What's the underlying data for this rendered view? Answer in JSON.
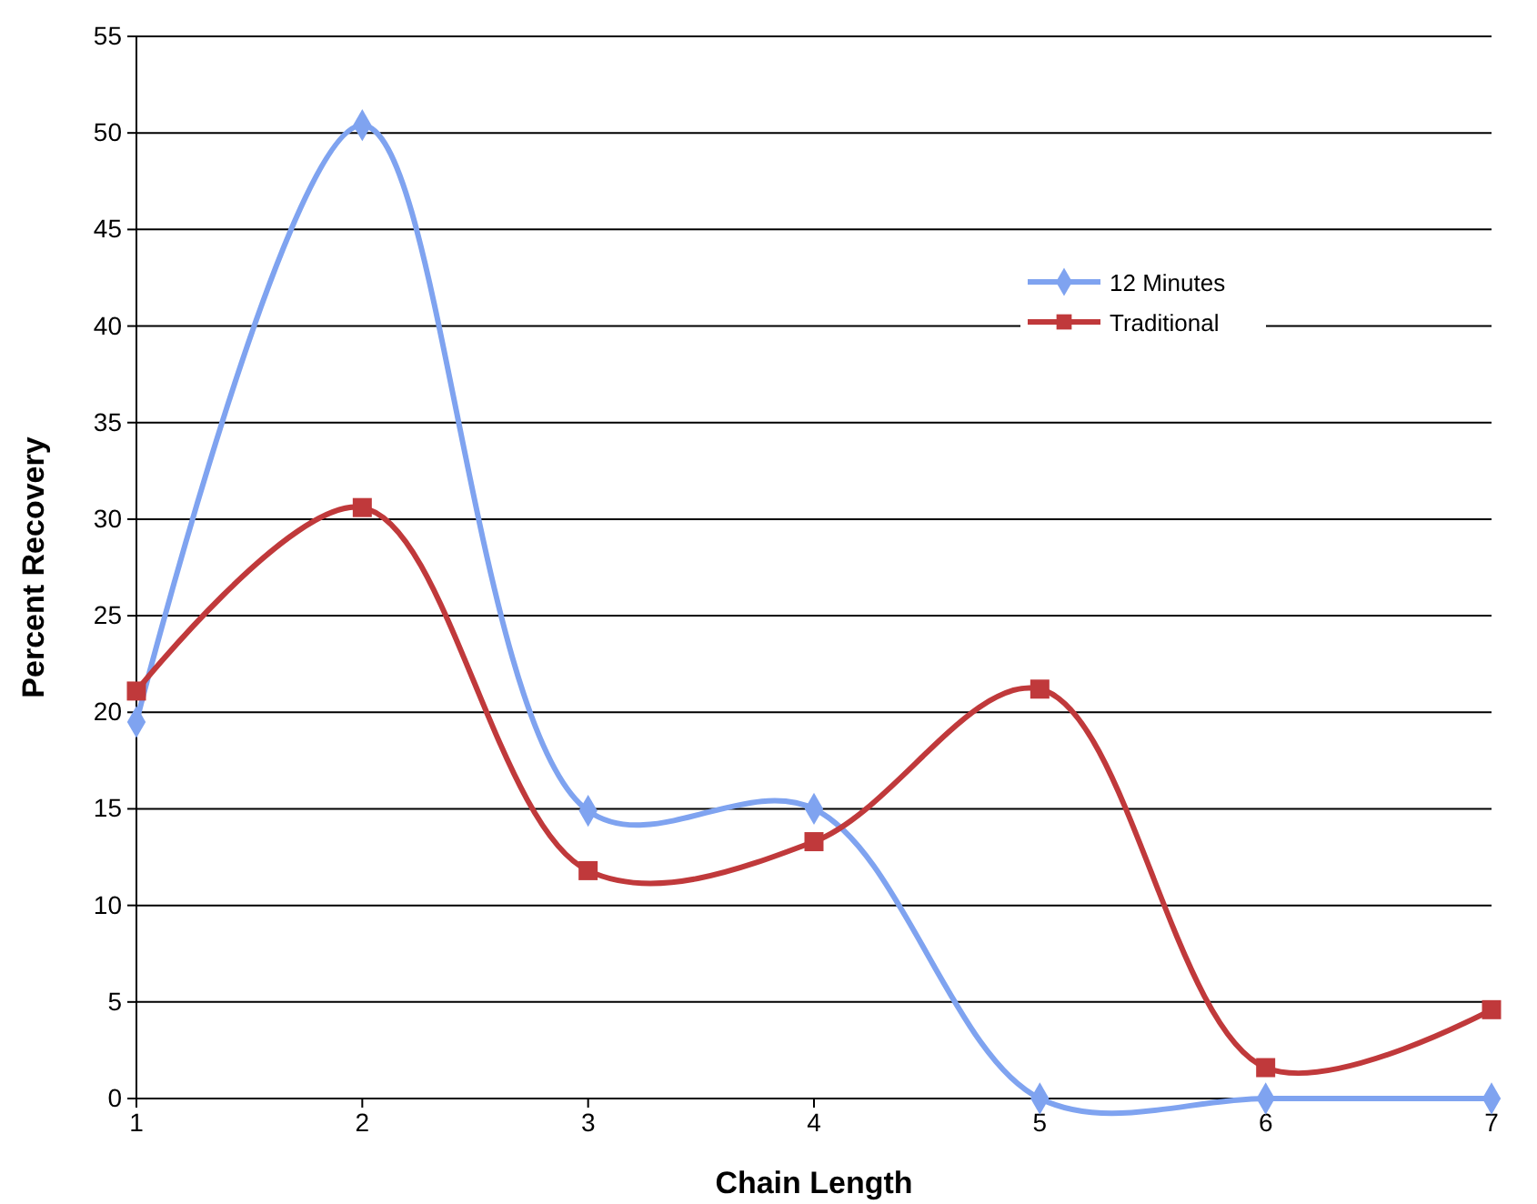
{
  "chart_data": {
    "type": "line",
    "xlabel": "Chain Length",
    "ylabel": "Percent Recovery",
    "x": [
      1,
      2,
      3,
      4,
      5,
      6,
      7
    ],
    "xlim": [
      1,
      7
    ],
    "xticks": [
      1,
      2,
      3,
      4,
      5,
      6,
      7
    ],
    "ylim": [
      0,
      55
    ],
    "yticks": [
      0,
      5,
      10,
      15,
      20,
      25,
      30,
      35,
      40,
      45,
      50,
      55
    ],
    "grid": "y",
    "legend": "top right",
    "series": [
      {
        "name": "12 Minutes",
        "color": "#7fa3f0",
        "marker": "diamond",
        "values": [
          19.5,
          50.4,
          14.9,
          15.0,
          0,
          0,
          0
        ]
      },
      {
        "name": "Traditional",
        "color": "#c0393b",
        "marker": "square",
        "values": [
          21.1,
          30.6,
          11.8,
          13.3,
          21.2,
          1.6,
          4.6
        ]
      }
    ]
  }
}
